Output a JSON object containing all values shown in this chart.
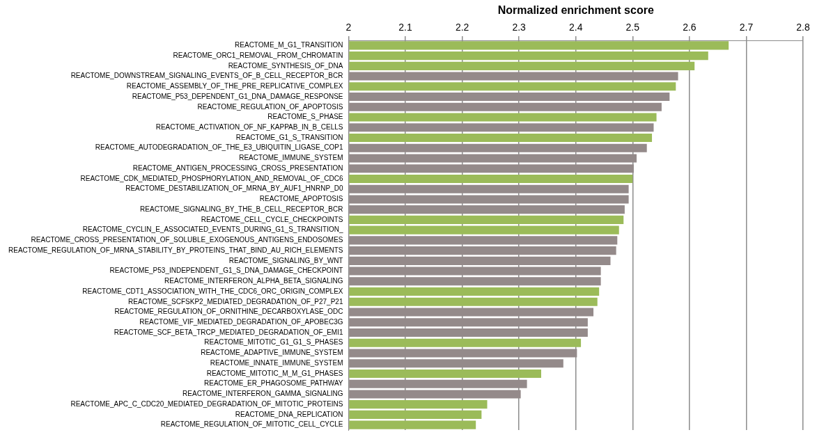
{
  "chart_data": {
    "type": "bar",
    "orientation": "horizontal",
    "xlabel": "Normalized enrichment score",
    "categories": [
      "REACTOME_M_G1_TRANSITION",
      "REACTOME_ORC1_REMOVAL_FROM_CHROMATIN",
      "REACTOME_SYNTHESIS_OF_DNA",
      "REACTOME_DOWNSTREAM_SIGNALING_EVENTS_OF_B_CELL_RECEPTOR_BCR",
      "REACTOME_ASSEMBLY_OF_THE_PRE_REPLICATIVE_COMPLEX",
      "REACTOME_P53_DEPENDENT_G1_DNA_DAMAGE_RESPONSE",
      "REACTOME_REGULATION_OF_APOPTOSIS",
      "REACTOME_S_PHASE",
      "REACTOME_ACTIVATION_OF_NF_KAPPAB_IN_B_CELLS",
      "REACTOME_G1_S_TRANSITION",
      "REACTOME_AUTODEGRADATION_OF_THE_E3_UBIQUITIN_LIGASE_COP1",
      "REACTOME_IMMUNE_SYSTEM",
      "REACTOME_ANTIGEN_PROCESSING_CROSS_PRESENTATION",
      "REACTOME_CDK_MEDIATED_PHOSPHORYLATION_AND_REMOVAL_OF_CDC6",
      "REACTOME_DESTABILIZATION_OF_MRNA_BY_AUF1_HNRNP_D0",
      "REACTOME_APOPTOSIS",
      "REACTOME_SIGNALING_BY_THE_B_CELL_RECEPTOR_BCR",
      "REACTOME_CELL_CYCLE_CHECKPOINTS",
      "REACTOME_CYCLIN_E_ASSOCIATED_EVENTS_DURING_G1_S_TRANSITION_",
      "REACTOME_CROSS_PRESENTATION_OF_SOLUBLE_EXOGENOUS_ANTIGENS_ENDOSOMES",
      "REACTOME_REGULATION_OF_MRNA_STABILITY_BY_PROTEINS_THAT_BIND_AU_RICH_ELEMENTS",
      "REACTOME_SIGNALING_BY_WNT",
      "REACTOME_P53_INDEPENDENT_G1_S_DNA_DAMAGE_CHECKPOINT",
      "REACTOME_INTERFERON_ALPHA_BETA_SIGNALING",
      "REACTOME_CDT1_ASSOCIATION_WITH_THE_CDC6_ORC_ORIGIN_COMPLEX",
      "REACTOME_SCFSKP2_MEDIATED_DEGRADATION_OF_P27_P21",
      "REACTOME_REGULATION_OF_ORNITHINE_DECARBOXYLASE_ODC",
      "REACTOME_VIF_MEDIATED_DEGRADATION_OF_APOBEC3G",
      "REACTOME_SCF_BETA_TRCP_MEDIATED_DEGRADATION_OF_EMI1",
      "REACTOME_MITOTIC_G1_G1_S_PHASES",
      "REACTOME_ADAPTIVE_IMMUNE_SYSTEM",
      "REACTOME_INNATE_IMMUNE_SYSTEM",
      "REACTOME_MITOTIC_M_M_G1_PHASES",
      "REACTOME_ER_PHAGOSOME_PATHWAY",
      "REACTOME_INTERFERON_GAMMA_SIGNALING",
      "REACTOME_APC_C_CDC20_MEDIATED_DEGRADATION_OF_MITOTIC_PROTEINS",
      "REACTOME_DNA_REPLICATION",
      "REACTOME_REGULATION_OF_MITOTIC_CELL_CYCLE"
    ],
    "values": [
      2.669,
      2.633,
      2.609,
      2.58,
      2.576,
      2.565,
      2.551,
      2.542,
      2.537,
      2.534,
      2.525,
      2.507,
      2.502,
      2.5,
      2.493,
      2.493,
      2.486,
      2.484,
      2.476,
      2.473,
      2.471,
      2.461,
      2.444,
      2.444,
      2.441,
      2.438,
      2.431,
      2.421,
      2.421,
      2.409,
      2.402,
      2.378,
      2.339,
      2.314,
      2.303,
      2.244,
      2.234,
      2.224
    ],
    "colors": [
      "#9bbb59",
      "#9bbb59",
      "#9bbb59",
      "#948a8a",
      "#9bbb59",
      "#948a8a",
      "#948a8a",
      "#9bbb59",
      "#948a8a",
      "#9bbb59",
      "#948a8a",
      "#948a8a",
      "#948a8a",
      "#9bbb59",
      "#948a8a",
      "#948a8a",
      "#948a8a",
      "#9bbb59",
      "#9bbb59",
      "#948a8a",
      "#948a8a",
      "#948a8a",
      "#948a8a",
      "#948a8a",
      "#9bbb59",
      "#9bbb59",
      "#948a8a",
      "#948a8a",
      "#948a8a",
      "#9bbb59",
      "#948a8a",
      "#948a8a",
      "#9bbb59",
      "#948a8a",
      "#948a8a",
      "#9bbb59",
      "#9bbb59",
      "#9bbb59"
    ],
    "xlim": [
      2,
      2.8
    ],
    "xticks": [
      2,
      2.1,
      2.2,
      2.3,
      2.4,
      2.5,
      2.6,
      2.7,
      2.8
    ],
    "grid": "x",
    "legend": false
  }
}
